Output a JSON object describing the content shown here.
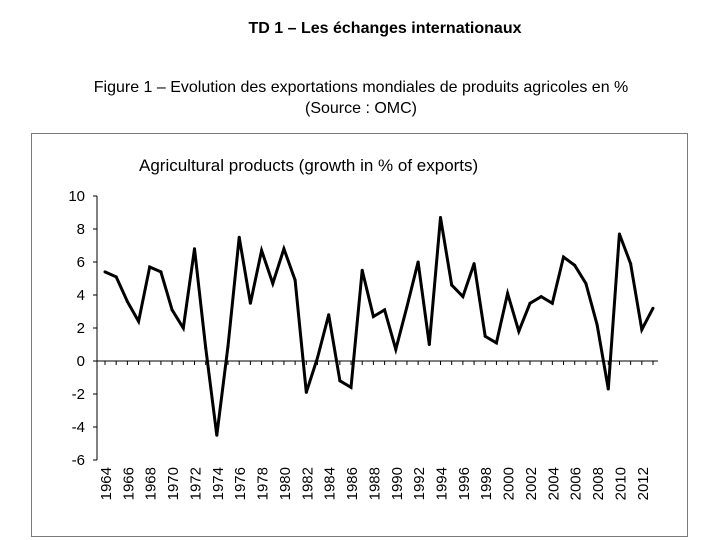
{
  "page": {
    "title": "TD 1 – Les échanges internationaux",
    "caption_line1": "Figure 1 – Evolution des exportations mondiales de produits agricoles en %",
    "caption_line2": "(Source : OMC)"
  },
  "chart_data": {
    "type": "line",
    "title": "Agricultural products (growth in % of exports)",
    "xlabel": "",
    "ylabel": "",
    "ylim": [
      -6,
      10
    ],
    "yticks": [
      -6,
      -4,
      -2,
      0,
      2,
      4,
      6,
      8,
      10
    ],
    "x_tick_labels": [
      "1964",
      "1966",
      "1968",
      "1970",
      "1972",
      "1974",
      "1976",
      "1978",
      "1980",
      "1982",
      "1984",
      "1986",
      "1988",
      "1990",
      "1992",
      "1994",
      "1996",
      "1998",
      "2000",
      "2002",
      "2004",
      "2006",
      "2008",
      "2010",
      "2012"
    ],
    "grid": false,
    "series": [
      {
        "x": [
          1964,
          1965,
          1966,
          1967,
          1968,
          1969,
          1970,
          1971,
          1972,
          1973,
          1974,
          1975,
          1976,
          1977,
          1978,
          1979,
          1980,
          1981,
          1982,
          1983,
          1984,
          1985,
          1986,
          1987,
          1988,
          1989,
          1990,
          1991,
          1992,
          1993,
          1994,
          1995,
          1996,
          1997,
          1998,
          1999,
          2000,
          2001,
          2002,
          2003,
          2004,
          2005,
          2006,
          2007,
          2008,
          2009,
          2010,
          2011,
          2012,
          2013
        ],
        "values": [
          5.4,
          5.1,
          3.6,
          2.4,
          5.7,
          5.4,
          3.1,
          2.0,
          6.8,
          0.8,
          -4.5,
          0.9,
          7.5,
          3.5,
          6.7,
          4.7,
          6.8,
          4.9,
          -1.9,
          0.2,
          2.8,
          -1.2,
          -1.6,
          5.5,
          2.7,
          3.1,
          0.7,
          3.3,
          6.0,
          1.0,
          8.7,
          4.6,
          3.9,
          5.9,
          1.5,
          1.1,
          4.1,
          1.8,
          3.5,
          3.9,
          3.5,
          6.3,
          5.8,
          4.7,
          2.2,
          -1.7,
          7.7,
          5.9,
          1.9,
          3.2
        ]
      }
    ]
  }
}
